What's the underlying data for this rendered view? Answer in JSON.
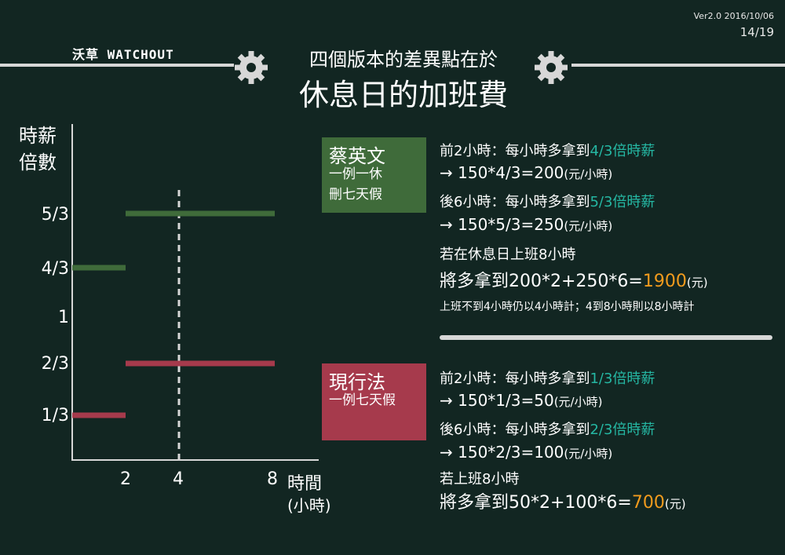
{
  "header": {
    "version": "Ver2.0 2016/10/06",
    "page": "14/19",
    "brand": "沃草 WATCHOUT",
    "subtitle": "四個版本的差異點在於",
    "title": "休息日的加班費"
  },
  "chart_data": {
    "type": "line",
    "ylabel": "時薪倍數",
    "xlabel": "時間",
    "xunit": "(小時)",
    "x_ticks": [
      "2",
      "4",
      "8"
    ],
    "y_ticks": [
      "5/3",
      "4/3",
      "1",
      "2/3",
      "1/3"
    ],
    "reference_line_x": 4,
    "series": [
      {
        "name": "蔡英文",
        "color": "#3f6b3a",
        "segments": [
          {
            "x0": 0,
            "x1": 2,
            "y": 1.3333
          },
          {
            "x0": 2,
            "x1": 8,
            "y": 1.6667
          }
        ]
      },
      {
        "name": "現行法",
        "color": "#a63a4c",
        "segments": [
          {
            "x0": 0,
            "x1": 2,
            "y": 0.3333
          },
          {
            "x0": 2,
            "x1": 8,
            "y": 0.6667
          }
        ]
      }
    ]
  },
  "tsai": {
    "name": "蔡英文",
    "sub1": "一例一休",
    "sub2": "刪七天假",
    "color": "#3f6b3a",
    "line1_a": "前2小時：每小時多拿到",
    "line1_hl": "4/3倍時薪",
    "line2_a": "→ 150*4/3=200",
    "line2_unit": "(元/小時)",
    "line3_a": "後6小時：每小時多拿到",
    "line3_hl": "5/3倍時薪",
    "line4_a": "→ 150*5/3=250",
    "line4_unit": "(元/小時)",
    "line5": "若在休息日上班8小時",
    "line6_a": "將多拿到200*2+250*6=",
    "line6_hl": "1900",
    "line6_unit": "(元)",
    "note": "上班不到4小時仍以4小時計；4到8小時則以8小時計"
  },
  "current": {
    "name": "現行法",
    "sub1": "一例七天假",
    "color": "#a63a4c",
    "line1_a": "前2小時：每小時多拿到",
    "line1_hl": "1/3倍時薪",
    "line2_a": "→ 150*1/3=50",
    "line2_unit": "(元/小時)",
    "line3_a": "後6小時：每小時多拿到",
    "line3_hl": "2/3倍時薪",
    "line4_a": "→ 150*2/3=100",
    "line4_unit": "(元/小時)",
    "line5": "若上班8小時",
    "line6_a": "將多拿到50*2+100*6=",
    "line6_hl": "700",
    "line6_unit": "(元)"
  },
  "colors": {
    "background": "#122622",
    "teal": "#25b7a3",
    "orange": "#f29b1d",
    "line": "#d7d7d7"
  }
}
